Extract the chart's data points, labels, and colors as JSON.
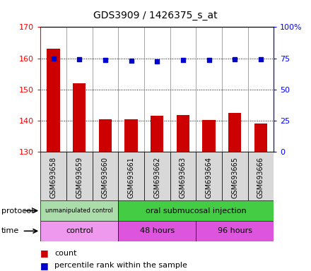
{
  "title": "GDS3909 / 1426375_s_at",
  "samples": [
    "GSM693658",
    "GSM693659",
    "GSM693660",
    "GSM693661",
    "GSM693662",
    "GSM693663",
    "GSM693664",
    "GSM693665",
    "GSM693666"
  ],
  "counts": [
    163,
    152,
    140.5,
    140.5,
    141.5,
    141.8,
    140.2,
    142.5,
    139
  ],
  "percentile_ranks": [
    75,
    74,
    73.5,
    73,
    72.5,
    73.5,
    73.5,
    74,
    74
  ],
  "ylim_left": [
    130,
    170
  ],
  "ylim_right": [
    0,
    100
  ],
  "yticks_left": [
    130,
    140,
    150,
    160,
    170
  ],
  "yticks_right": [
    0,
    25,
    50,
    75,
    100
  ],
  "ytick_labels_right": [
    "0",
    "25",
    "50",
    "75",
    "100%"
  ],
  "bar_color": "#cc0000",
  "dot_color": "#0000cc",
  "protocol_groups": [
    {
      "label": "unmanipulated control",
      "start": 0,
      "end": 3,
      "color": "#aaddaa"
    },
    {
      "label": "oral submucosal injection",
      "start": 3,
      "end": 9,
      "color": "#44cc44"
    }
  ],
  "time_groups": [
    {
      "label": "control",
      "start": 0,
      "end": 3,
      "color": "#ee99ee"
    },
    {
      "label": "48 hours",
      "start": 3,
      "end": 6,
      "color": "#dd55dd"
    },
    {
      "label": "96 hours",
      "start": 6,
      "end": 9,
      "color": "#dd55dd"
    }
  ],
  "legend_count_color": "#cc0000",
  "legend_percentile_color": "#0000cc"
}
